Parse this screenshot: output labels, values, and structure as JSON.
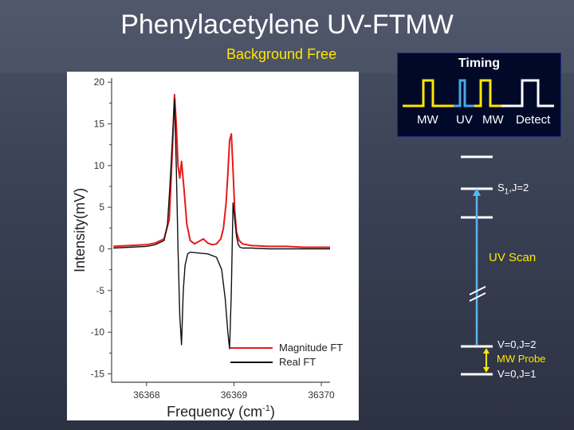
{
  "header": {
    "title": "Phenylacetylene UV-FTMW",
    "subtitle": "Background Free"
  },
  "timing": {
    "title": "Timing",
    "labels": [
      "MW",
      "UV",
      "MW",
      "Detect"
    ],
    "colors": {
      "pulse": "#ffe600",
      "uv": "#4aa8e8",
      "line": "#ffffff"
    }
  },
  "levels": {
    "upper_label_prefix": "S",
    "upper_label_sub": "1",
    "upper_label_suffix": ",J=2",
    "uv_scan_label": "UV Scan",
    "v0j2_label": "V=0,J=2",
    "mw_probe_label": "MW Probe",
    "v0j1_label": "V=0,J=1",
    "colors": {
      "uv_arrow": "#5ab4f0",
      "mw_arrow": "#ffe600"
    }
  },
  "chart_data": {
    "type": "line",
    "xlabel": "Frequency (cm",
    "xlabel_sup": "-1",
    "xlabel_suffix": ")",
    "ylabel": "Intensity(mV)",
    "xlim": [
      36367.6,
      36370.1
    ],
    "ylim": [
      -16,
      20.5
    ],
    "x_ticks": [
      "36368",
      "36369",
      "36370"
    ],
    "x_tick_values": [
      36368,
      36369,
      36370
    ],
    "y_ticks": [
      "20",
      "15",
      "10",
      "5",
      "0",
      "-5",
      "-10",
      "-15"
    ],
    "y_tick_values": [
      20,
      15,
      10,
      5,
      0,
      -5,
      -10,
      -15
    ],
    "legend": "bottom-right",
    "series": [
      {
        "name": "Magnitude FT",
        "color": "#e8191a",
        "x": [
          36367.62,
          36367.8,
          36368.0,
          36368.1,
          36368.2,
          36368.26,
          36368.28,
          36368.3,
          36368.32,
          36368.34,
          36368.36,
          36368.38,
          36368.4,
          36368.43,
          36368.46,
          36368.5,
          36368.55,
          36368.6,
          36368.65,
          36368.7,
          36368.75,
          36368.8,
          36368.85,
          36368.88,
          36368.91,
          36368.93,
          36368.95,
          36368.97,
          36368.99,
          36369.01,
          36369.03,
          36369.06,
          36369.1,
          36369.2,
          36369.4,
          36369.6,
          36369.8,
          36370.0,
          36370.1
        ],
        "y": [
          0.3,
          0.4,
          0.5,
          0.7,
          1.2,
          3.5,
          8.0,
          13.0,
          18.5,
          15.0,
          10.0,
          8.5,
          10.5,
          7.0,
          3.0,
          1.0,
          0.6,
          0.9,
          1.2,
          0.7,
          0.5,
          0.6,
          1.2,
          2.5,
          5.5,
          9.0,
          13.0,
          13.8,
          9.5,
          4.5,
          2.0,
          1.0,
          0.6,
          0.4,
          0.3,
          0.3,
          0.2,
          0.2,
          0.2
        ]
      },
      {
        "name": "Real FT",
        "color": "#111111",
        "x": [
          36367.62,
          36367.8,
          36368.0,
          36368.1,
          36368.2,
          36368.24,
          36368.27,
          36368.3,
          36368.32,
          36368.34,
          36368.36,
          36368.38,
          36368.4,
          36368.42,
          36368.44,
          36368.47,
          36368.5,
          36368.6,
          36368.7,
          36368.8,
          36368.86,
          36368.9,
          36368.93,
          36368.95,
          36368.97,
          36368.99,
          36369.01,
          36369.03,
          36369.05,
          36369.07,
          36369.1,
          36369.2,
          36369.4,
          36369.6,
          36369.8,
          36370.0,
          36370.1
        ],
        "y": [
          0.1,
          0.2,
          0.3,
          0.5,
          1.0,
          3.0,
          8.0,
          14.0,
          18.0,
          10.0,
          0.0,
          -8.0,
          -11.5,
          -5.0,
          -2.0,
          -0.6,
          -0.4,
          -0.5,
          -0.6,
          -1.0,
          -2.5,
          -6.0,
          -10.0,
          -12.0,
          -5.0,
          5.5,
          3.5,
          1.5,
          0.5,
          0.2,
          0.1,
          0.1,
          0.0,
          0.0,
          0.0,
          0.0,
          0.0
        ]
      }
    ]
  }
}
